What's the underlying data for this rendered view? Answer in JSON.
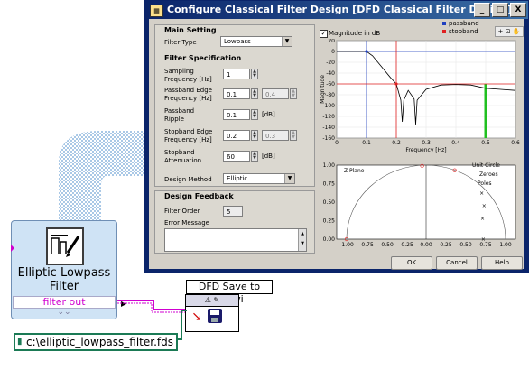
{
  "dialog": {
    "title": "Configure Classical Filter Design [DFD Classical Filter Design]",
    "window_buttons": [
      "_",
      "□",
      "X"
    ]
  },
  "main_setting": {
    "heading": "Main Setting",
    "filter_type_label": "Filter Type",
    "filter_type_value": "Lowpass"
  },
  "filter_spec": {
    "heading": "Filter Specification",
    "sampling_label": "Sampling\nFrequency [Hz]",
    "sampling_value": "1",
    "passband_edge_label": "Passband Edge\nFrequency [Hz]",
    "passband_edge_value": "0.1",
    "passband_edge_disabled": "0.4",
    "passband_ripple_label": "Passband\nRipple",
    "passband_ripple_value": "0.1",
    "passband_ripple_unit": "[dB]",
    "stopband_edge_label": "Stopband Edge\nFrequency [Hz]",
    "stopband_edge_value": "0.2",
    "stopband_edge_disabled": "0.3",
    "stopband_atten_label": "Stopband\nAttenuation",
    "stopband_atten_value": "60",
    "stopband_atten_unit": "[dB]"
  },
  "design_method": {
    "label": "Design Method",
    "value": "Elliptic"
  },
  "feedback": {
    "heading": "Design Feedback",
    "filter_order_label": "Filter Order",
    "filter_order_value": "5",
    "error_label": "Error Message"
  },
  "magnitude_plot": {
    "checkbox_label": "Magnitude in dB",
    "legend_passband": "passband",
    "legend_stopband": "stopband",
    "ylabel": "Magnitude",
    "xlabel": "Frequency [Hz]",
    "yticks": [
      "20",
      "0",
      "-20",
      "-40",
      "-60",
      "-80",
      "-100",
      "-120",
      "-140",
      "-160"
    ],
    "xticks": [
      "0",
      "0.1",
      "0.2",
      "0.3",
      "0.4",
      "0.5",
      "0.6"
    ]
  },
  "zplane_plot": {
    "title": "Z Plane",
    "legend_unit_circle": "Unit Circle",
    "legend_zeroes": "Zeroes",
    "legend_poles": "Poles",
    "yticks": [
      "1.00",
      "0.75",
      "0.50",
      "0.25",
      "0.00"
    ],
    "xticks": [
      "-1.00",
      "-0.75",
      "-0.50",
      "-0.25",
      "0.00",
      "0.25",
      "0.50",
      "0.75",
      "1.00"
    ]
  },
  "buttons": {
    "ok": "OK",
    "cancel": "Cancel",
    "help": "Help"
  },
  "block_diagram": {
    "express_vi_title": "Elliptic Lowpass\nFilter",
    "filter_out": "filter out",
    "save_vi_label": "DFD Save to File.vi",
    "path_constant": "c:\\elliptic_lowpass_filter.fds"
  },
  "colors": {
    "passband_line": "#1f3fbf",
    "stopband_line": "#e02020",
    "stopband_band": "#20c020",
    "wire": "#d000d0",
    "path_wire": "#1b7a55",
    "title_gradient_start": "#0a246a"
  }
}
